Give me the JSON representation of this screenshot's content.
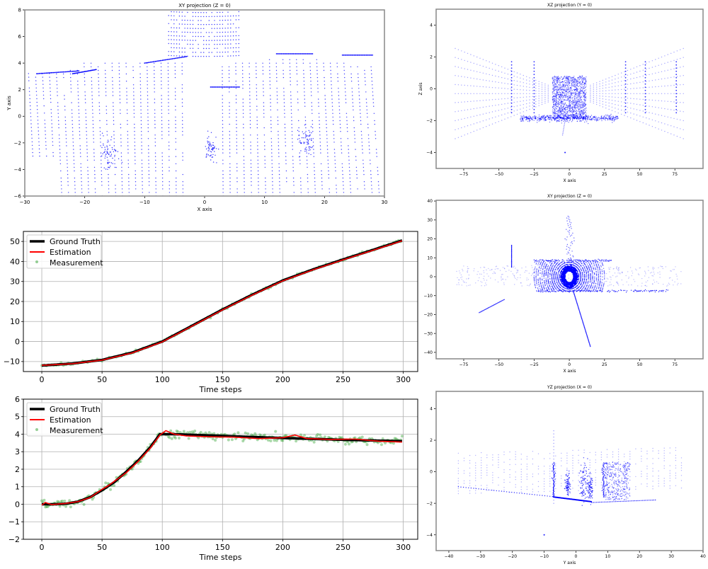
{
  "chart_data": [
    {
      "id": "xy_small",
      "type": "scatter",
      "title": "XY projection (Z = 0)",
      "xlabel": "X axis",
      "ylabel": "Y axis",
      "xlim": [
        -30,
        30
      ],
      "ylim": [
        -6,
        8
      ],
      "xticks": [
        -30,
        -20,
        -10,
        0,
        10,
        20,
        30
      ],
      "yticks": [
        -6,
        -4,
        -2,
        0,
        2,
        4,
        6,
        8
      ],
      "grid": false,
      "color": "#0000ff"
    },
    {
      "id": "xz",
      "type": "scatter",
      "title": "XZ projection (Y = 0)",
      "xlabel": "X axis",
      "ylabel": "Z axis",
      "xlim": [
        -94.6,
        95
      ],
      "ylim": [
        -5,
        5
      ],
      "xticks": [
        -75,
        -50,
        -25,
        0,
        25,
        50,
        75
      ],
      "yticks": [
        -4,
        -2,
        0,
        2,
        4
      ],
      "grid": false,
      "color": "#0000ff"
    },
    {
      "id": "xy_large",
      "type": "scatter",
      "title": "XY projection (Z = 0)",
      "xlabel": "X axis",
      "ylabel": "",
      "xlim": [
        -94.6,
        95
      ],
      "ylim": [
        -43.4,
        40.4
      ],
      "xticks": [
        -75,
        -50,
        -25,
        0,
        25,
        50,
        75
      ],
      "yticks": [
        -40,
        -30,
        -20,
        -10,
        0,
        10,
        20,
        30,
        40
      ],
      "grid": false,
      "color": "#0000ff"
    },
    {
      "id": "yz",
      "type": "scatter",
      "title": "YZ projection (X = 0)",
      "xlabel": "Y axis",
      "ylabel": "",
      "xlim": [
        -44,
        40
      ],
      "ylim": [
        -5,
        5.1
      ],
      "xticks": [
        -40,
        -30,
        -20,
        -10,
        0,
        10,
        20,
        30,
        40
      ],
      "yticks": [
        -4,
        -2,
        0,
        2,
        4
      ],
      "grid": false,
      "color": "#0000ff"
    },
    {
      "id": "position",
      "type": "line",
      "title": "",
      "xlabel": "Time steps",
      "ylabel": "",
      "xlim": [
        -15.3,
        312
      ],
      "ylim": [
        -15,
        55
      ],
      "xticks": [
        0,
        50,
        100,
        150,
        200,
        250,
        300
      ],
      "yticks": [
        -10,
        0,
        10,
        20,
        30,
        40,
        50
      ],
      "grid": true,
      "legend": {
        "placement": "top-left",
        "entries": [
          "Ground Truth",
          "Estimation",
          "Measurement"
        ]
      },
      "series": [
        {
          "name": "Ground Truth",
          "color": "#000000",
          "x": [
            0,
            25,
            50,
            75,
            100,
            125,
            150,
            175,
            200,
            225,
            250,
            275,
            299
          ],
          "values": [
            -12,
            -11,
            -9.2,
            -5.5,
            0,
            8,
            16,
            23.5,
            30.5,
            36,
            41,
            45.8,
            50.5
          ]
        },
        {
          "name": "Estimation",
          "color": "#ff0000",
          "x": [
            0,
            25,
            50,
            75,
            100,
            125,
            150,
            175,
            200,
            225,
            250,
            275,
            299
          ],
          "values": [
            -11.9,
            -11.1,
            -9.3,
            -5.7,
            -0.2,
            7.8,
            15.8,
            23.3,
            30.3,
            35.8,
            40.8,
            45.6,
            50.3
          ]
        },
        {
          "name": "Measurement",
          "color": "#2ca02c",
          "noise": 0.35,
          "step": 2
        }
      ]
    },
    {
      "id": "velocity",
      "type": "line",
      "title": "",
      "xlabel": "Time steps",
      "ylabel": "",
      "xlim": [
        -15.3,
        312
      ],
      "ylim": [
        -2,
        6
      ],
      "xticks": [
        0,
        50,
        100,
        150,
        200,
        250,
        300
      ],
      "yticks": [
        -2,
        -1,
        0,
        1,
        2,
        3,
        4,
        5,
        6
      ],
      "grid": true,
      "legend": {
        "placement": "top-left",
        "entries": [
          "Ground Truth",
          "Estimation",
          "Measurement"
        ]
      },
      "series": [
        {
          "name": "Ground Truth",
          "color": "#000000",
          "x": [
            0,
            10,
            20,
            30,
            40,
            50,
            60,
            70,
            80,
            90,
            98,
            110,
            150,
            200,
            250,
            299
          ],
          "values": [
            0,
            0,
            0.03,
            0.15,
            0.4,
            0.8,
            1.25,
            1.85,
            2.5,
            3.25,
            4.0,
            4.0,
            3.9,
            3.78,
            3.68,
            3.6
          ]
        },
        {
          "name": "Estimation",
          "color": "#ff0000",
          "x": [
            0,
            3,
            8,
            20,
            30,
            40,
            50,
            55,
            60,
            70,
            80,
            90,
            98,
            103,
            110,
            120,
            140,
            160,
            180,
            200,
            210,
            220,
            240,
            260,
            280,
            299
          ],
          "values": [
            -0.05,
            0.1,
            -0.02,
            0.05,
            0.15,
            0.38,
            0.85,
            1.05,
            1.3,
            1.8,
            2.45,
            3.2,
            3.95,
            4.2,
            4.0,
            3.9,
            3.85,
            3.83,
            3.75,
            3.8,
            3.95,
            3.75,
            3.7,
            3.72,
            3.6,
            3.55
          ]
        },
        {
          "name": "Measurement",
          "color": "#2ca02c",
          "noise": 0.12,
          "step": 1
        }
      ]
    }
  ]
}
